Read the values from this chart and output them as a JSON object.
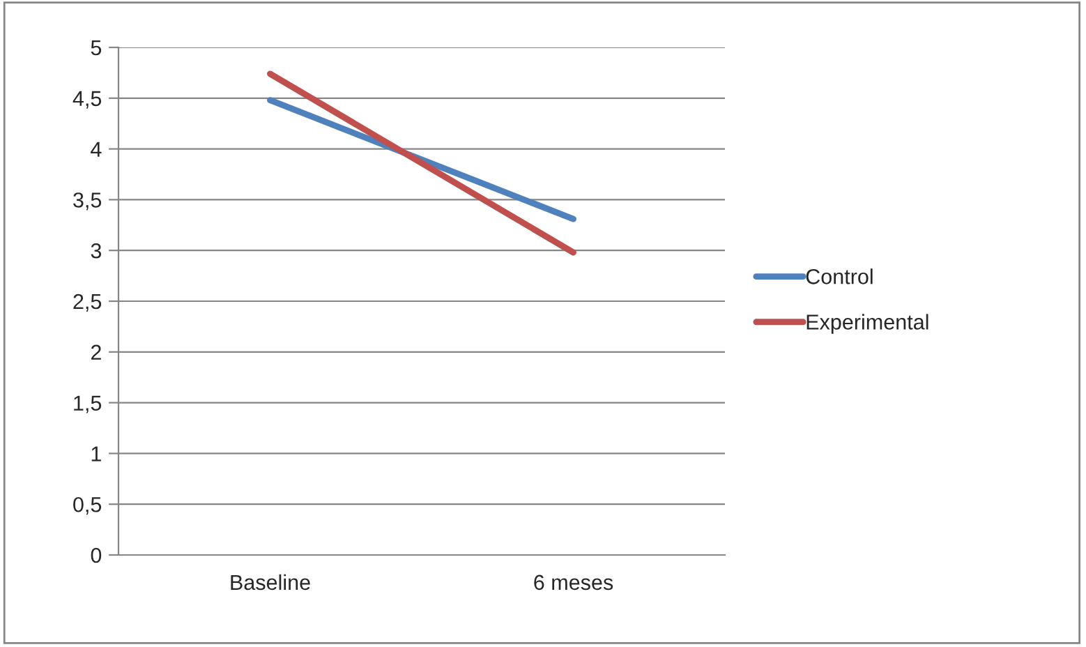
{
  "chart_data": {
    "type": "line",
    "categories": [
      "Baseline",
      "6 meses"
    ],
    "series": [
      {
        "name": "Control",
        "color": "#4f81bd",
        "values": [
          4.48,
          3.31
        ]
      },
      {
        "name": "Experimental",
        "color": "#c0504d",
        "values": [
          4.74,
          2.98
        ]
      }
    ],
    "ylim": [
      0,
      5
    ],
    "yticks": [
      0,
      {
        "value": 0.5,
        "label": "0,5"
      },
      1,
      {
        "value": 1.5,
        "label": "1,5"
      },
      2,
      {
        "value": 2.5,
        "label": "2,5"
      },
      3,
      {
        "value": 3.5,
        "label": "3,5"
      },
      4,
      {
        "value": 4.5,
        "label": "4,5"
      },
      5
    ],
    "grid": "y",
    "legend": "right",
    "marker": "none",
    "line_style": "solid"
  }
}
